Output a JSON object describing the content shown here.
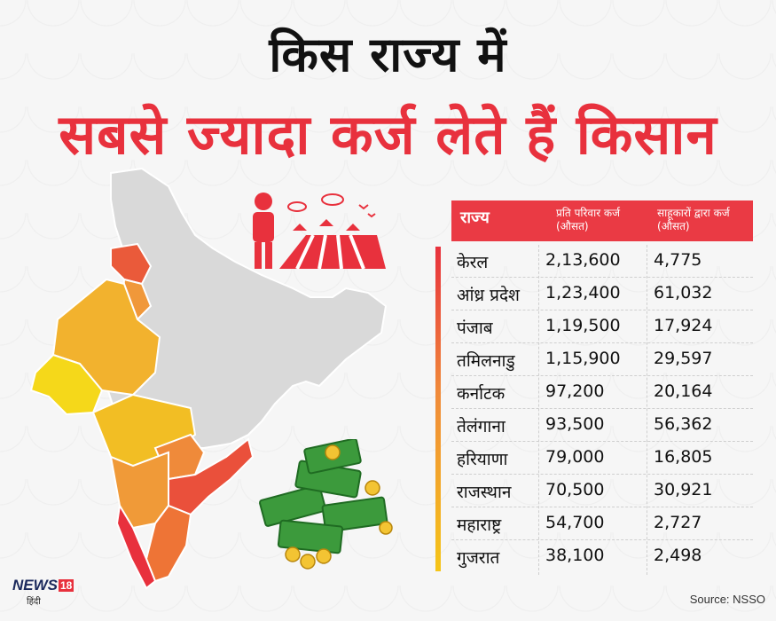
{
  "title_line1": "किस राज्य में",
  "title_line2": "सबसे ज्यादा कर्ज लेते हैं किसान",
  "table_headers": [
    "राज्य",
    "प्रति परिवार कर्ज",
    "(औसत)",
    "साहूकारों द्वारा कर्ज",
    "(औसत)"
  ],
  "source": "Source: NSSO",
  "logo": {
    "brand": "NEWS",
    "number": "18",
    "lang": "हिंदी"
  },
  "colors": {
    "accent": "#e8313d",
    "map_base": "#d9d9d9",
    "high": "#e8313d",
    "mid": "#f08a3a",
    "low": "#f5c518"
  },
  "chart_data": {
    "type": "table",
    "columns": [
      "राज्य",
      "प्रति परिवार कर्ज (औसत)",
      "साहूकारों द्वारा कर्ज (औसत)"
    ],
    "rows": [
      {
        "state": "केरल",
        "per_household": "2,13,600",
        "moneylender": "4,775"
      },
      {
        "state": "आंध्र प्रदेश",
        "per_household": "1,23,400",
        "moneylender": "61,032"
      },
      {
        "state": "पंजाब",
        "per_household": "1,19,500",
        "moneylender": "17,924"
      },
      {
        "state": "तमिलनाडु",
        "per_household": "1,15,900",
        "moneylender": "29,597"
      },
      {
        "state": "कर्नाटक",
        "per_household": "97,200",
        "moneylender": "20,164"
      },
      {
        "state": "तेलंगाना",
        "per_household": "93,500",
        "moneylender": "56,362"
      },
      {
        "state": "हरियाणा",
        "per_household": "79,000",
        "moneylender": "16,805"
      },
      {
        "state": "राजस्थान",
        "per_household": "70,500",
        "moneylender": "30,921"
      },
      {
        "state": "महाराष्ट्र",
        "per_household": "54,700",
        "moneylender": "2,727"
      },
      {
        "state": "गुजरात",
        "per_household": "38,100",
        "moneylender": "2,498"
      }
    ]
  }
}
